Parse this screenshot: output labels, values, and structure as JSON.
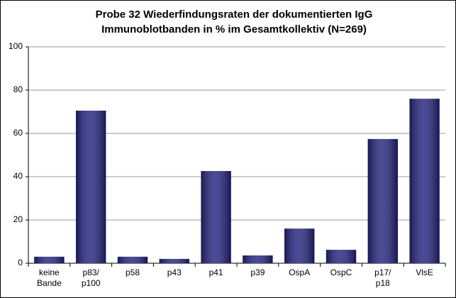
{
  "chart_data": {
    "type": "bar",
    "title": [
      "Probe 32 Wiederfindungsraten der dokumentierten IgG",
      "Immunoblotbanden  in % im Gesamtkollektiv (N=269)"
    ],
    "categories": [
      [
        "keine",
        "Bande"
      ],
      [
        "p83/",
        "p100"
      ],
      [
        "p58"
      ],
      [
        "p43"
      ],
      [
        "p41"
      ],
      [
        "p39"
      ],
      [
        "OspA"
      ],
      [
        "OspC"
      ],
      [
        "p17/",
        "p18"
      ],
      [
        "VlsE"
      ]
    ],
    "values": [
      3,
      70.5,
      3,
      2,
      42.6,
      3.6,
      16,
      6.2,
      57.4,
      76
    ],
    "color": "#24247f",
    "ylim": [
      0,
      100
    ],
    "yticks": [
      0,
      20,
      40,
      60,
      80,
      100
    ],
    "grid": true
  }
}
